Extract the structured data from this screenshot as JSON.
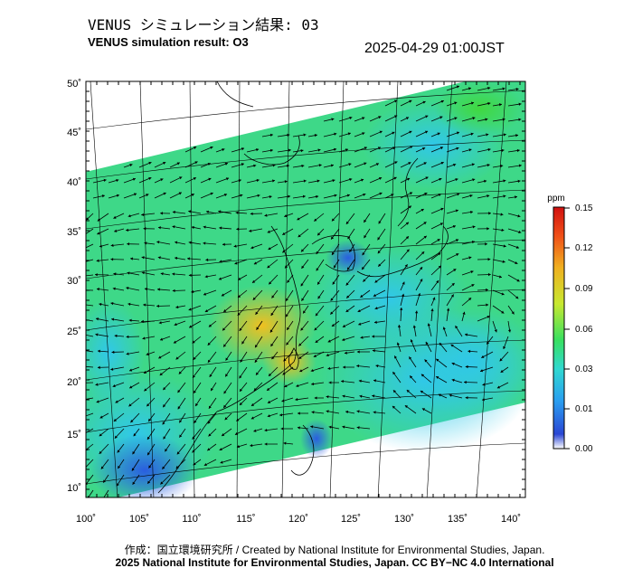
{
  "title_ja": "VENUS シミュレーション結果: 03",
  "title_en": "VENUS simulation result: O3",
  "datetime": "2025-04-29 01:00JST",
  "lat_labels": [
    "10˚",
    "15˚",
    "20˚",
    "25˚",
    "30˚",
    "35˚",
    "40˚",
    "45˚",
    "50˚"
  ],
  "lon_labels": [
    "100˚",
    "105˚",
    "110˚",
    "115˚",
    "120˚",
    "125˚",
    "130˚",
    "135˚",
    "140˚"
  ],
  "colorbar": {
    "unit": "ppm",
    "ticks": [
      "0.00",
      "0.01",
      "0.03",
      "0.06",
      "0.09",
      "0.12",
      "0.15"
    ],
    "colors": [
      "#ffffff",
      "#2a46d4",
      "#2aa0f0",
      "#30d8d0",
      "#38e060",
      "#c8e830",
      "#f0b020",
      "#f05018",
      "#d01010"
    ]
  },
  "credit_line1": "作成：国立環境研究所 / Created by National Institute for Environmental Studies, Japan.",
  "credit_line2": "2025 National Institute for Environmental Studies, Japan. CC BY−NC 4.0 International"
}
